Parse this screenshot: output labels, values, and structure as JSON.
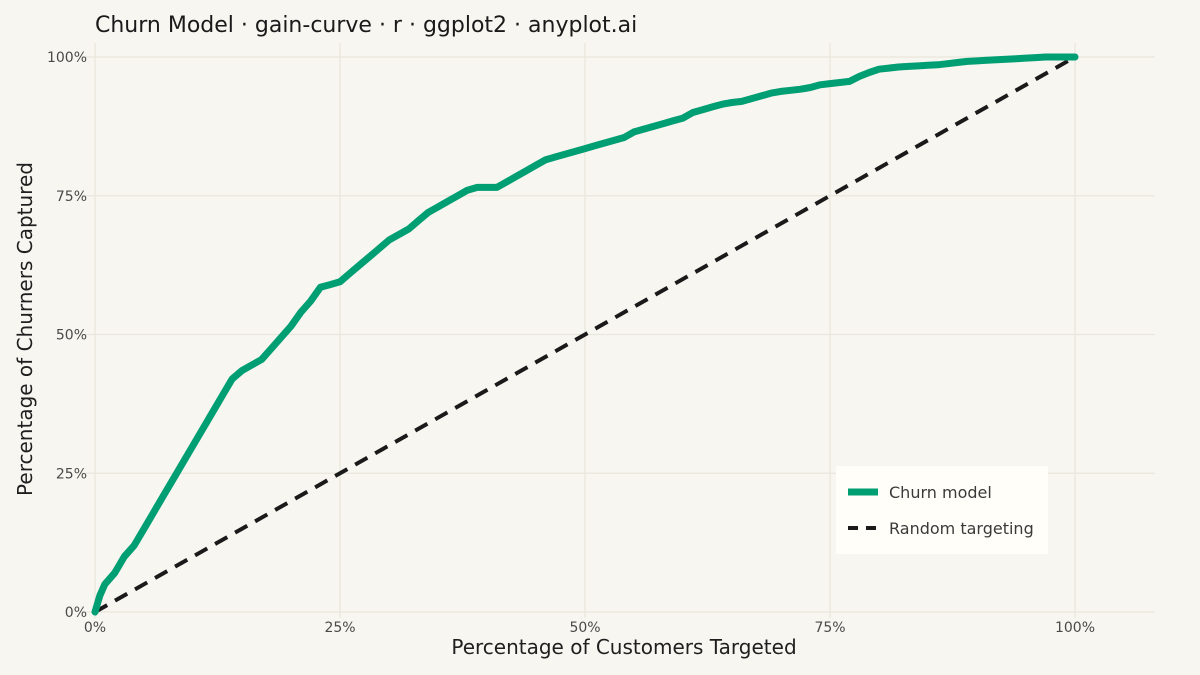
{
  "chart_data": {
    "type": "line",
    "title": "Churn Model · gain-curve · r · ggplot2 · anyplot.ai",
    "xlabel": "Percentage of Customers Targeted",
    "ylabel": "Percentage of Churners Captured",
    "xlim": [
      0,
      100
    ],
    "ylim": [
      0,
      100
    ],
    "x_ticks": [
      "0%",
      "25%",
      "50%",
      "75%",
      "100%"
    ],
    "y_ticks": [
      "0%",
      "25%",
      "50%",
      "75%",
      "100%"
    ],
    "grid": true,
    "legend_position": "bottom-right",
    "series": [
      {
        "name": "Churn model",
        "color": "#009E73",
        "style": "solid",
        "x": [
          0,
          0.5,
          1,
          2,
          3,
          4,
          5,
          6,
          7,
          8,
          9,
          10,
          11,
          12,
          13,
          14,
          15,
          16,
          17,
          18,
          19,
          20,
          21,
          22,
          23,
          24,
          25,
          26,
          27,
          28,
          29,
          30,
          31,
          32,
          33,
          34,
          35,
          36,
          37,
          38,
          39,
          40,
          41,
          42,
          43,
          44,
          45,
          46,
          47,
          48,
          49,
          50,
          51,
          52,
          53,
          54,
          55,
          56,
          57,
          58,
          59,
          60,
          61,
          62,
          63,
          64,
          65,
          66,
          67,
          68,
          69,
          70,
          71,
          72,
          73,
          74,
          75,
          76,
          77,
          78,
          79,
          80,
          81,
          82,
          83,
          84,
          85,
          86,
          87,
          88,
          89,
          90,
          91,
          92,
          93,
          94,
          95,
          96,
          97,
          98,
          99,
          100
        ],
        "y": [
          0,
          3,
          5,
          7,
          10,
          12,
          15,
          18,
          21,
          24,
          27,
          30,
          33,
          36,
          39,
          42,
          43.5,
          44.5,
          45.5,
          47.5,
          49.5,
          51.5,
          54,
          56,
          58.5,
          59,
          59.5,
          61,
          62.5,
          64,
          65.5,
          67,
          68,
          69,
          70.5,
          72,
          73,
          74,
          75,
          76,
          76.5,
          76.5,
          76.5,
          77.5,
          78.5,
          79.5,
          80.5,
          81.5,
          82,
          82.5,
          83,
          83.5,
          84,
          84.5,
          85,
          85.5,
          86.5,
          87,
          87.5,
          88,
          88.5,
          89,
          90,
          90.5,
          91,
          91.5,
          91.8,
          92,
          92.5,
          93,
          93.5,
          93.8,
          94,
          94.2,
          94.5,
          95,
          95.2,
          95.4,
          95.6,
          96.5,
          97.2,
          97.8,
          98,
          98.2,
          98.3,
          98.4,
          98.5,
          98.6,
          98.8,
          99,
          99.2,
          99.3,
          99.4,
          99.5,
          99.6,
          99.7,
          99.8,
          99.9,
          100,
          100,
          100,
          100
        ]
      },
      {
        "name": "Random targeting",
        "color": "#1A1A1A",
        "style": "dashed",
        "x": [
          0,
          100
        ],
        "y": [
          0,
          100
        ]
      }
    ]
  }
}
